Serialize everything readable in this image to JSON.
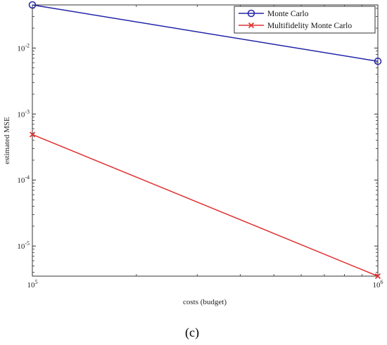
{
  "chart_data": {
    "type": "line",
    "x_scale": "log",
    "y_scale": "log",
    "xlabel": "costs (budget)",
    "ylabel": "estimated MSE",
    "xlim": [
      100000,
      1000000
    ],
    "ylim": [
      3.5e-06,
      0.045
    ],
    "x_ticks": [
      {
        "value": 100000,
        "base": "10",
        "exp": "5"
      },
      {
        "value": 1000000,
        "base": "10",
        "exp": "6"
      }
    ],
    "y_ticks": [
      {
        "value": 1e-05,
        "base": "10",
        "exp": "-5"
      },
      {
        "value": 0.0001,
        "base": "10",
        "exp": "-4"
      },
      {
        "value": 0.001,
        "base": "10",
        "exp": "-3"
      },
      {
        "value": 0.01,
        "base": "10",
        "exp": "-2"
      }
    ],
    "grid": false,
    "legend_position": "top-right",
    "series": [
      {
        "name": "Monte Carlo",
        "color": "#2323a8",
        "marker": "circle",
        "x": [
          100000,
          1000000
        ],
        "y": [
          0.045,
          0.0063
        ]
      },
      {
        "name": "Multifidelity Monte Carlo",
        "color": "#e03030",
        "marker": "x",
        "x": [
          100000,
          1000000
        ],
        "y": [
          0.00049,
          3.5e-06
        ]
      }
    ]
  },
  "caption": "(c)"
}
